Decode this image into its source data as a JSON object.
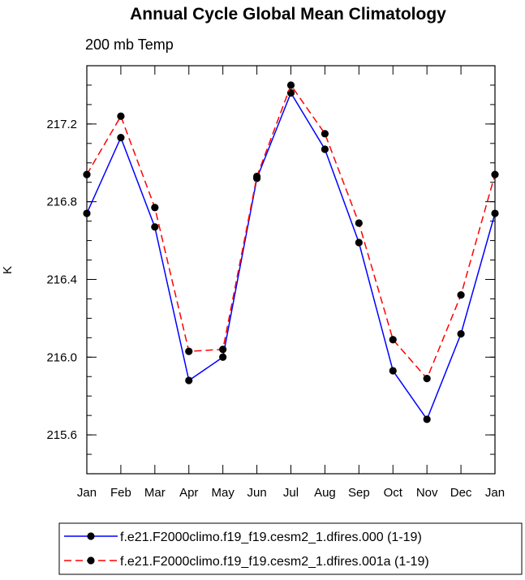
{
  "chart_data": {
    "type": "line",
    "title": "Annual Cycle Global Mean Climatology",
    "subtitle": "200 mb Temp",
    "xlabel": "",
    "ylabel": "K",
    "categories": [
      "Jan",
      "Feb",
      "Mar",
      "Apr",
      "May",
      "Jun",
      "Jul",
      "Aug",
      "Sep",
      "Oct",
      "Nov",
      "Dec",
      "Jan"
    ],
    "ylim": [
      215.4,
      217.5
    ],
    "yticks": [
      "215.6",
      "216.0",
      "216.4",
      "216.8",
      "217.2"
    ],
    "legend_position": "bottom",
    "series": [
      {
        "name": "f.e21.F2000climo.f19_f19.cesm2_1.dfires.000 (1-19)",
        "color": "#0000ff",
        "line_style": "solid",
        "values": [
          216.74,
          217.13,
          216.67,
          215.88,
          216.0,
          216.92,
          217.36,
          217.07,
          216.59,
          215.93,
          215.68,
          216.12,
          216.74
        ]
      },
      {
        "name": "f.e21.F2000climo.f19_f19.cesm2_1.dfires.001a (1-19)",
        "color": "#ff0000",
        "line_style": "dashed",
        "values": [
          216.94,
          217.24,
          216.77,
          216.03,
          216.04,
          216.93,
          217.4,
          217.15,
          216.69,
          216.09,
          215.89,
          216.32,
          216.94
        ]
      }
    ]
  }
}
